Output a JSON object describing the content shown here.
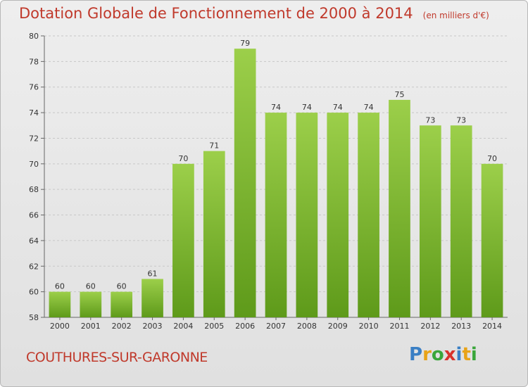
{
  "header": {
    "title": "Dotation Globale de Fonctionnement de 2000 à 2014",
    "unit": "(en milliers d'€)"
  },
  "footer": {
    "commune": "COUTHURES-SUR-GARONNE",
    "logo_letters": [
      "P",
      "r",
      "o",
      "x",
      "i",
      "t",
      "i"
    ],
    "logo_colors": [
      "#3a7fc4",
      "#e8a317",
      "#3aa63a",
      "#d8322b",
      "#3a7fc4",
      "#e8a317",
      "#3aa63a"
    ]
  },
  "colors": {
    "bar_top": "#9ccf4a",
    "bar_bottom": "#5e9a1a",
    "text": "#333333",
    "accent": "#c0392b"
  },
  "chart_data": {
    "type": "bar",
    "title": "Dotation Globale de Fonctionnement de 2000 à 2014",
    "subtitle": "(en milliers d'€)",
    "categories": [
      "2000",
      "2001",
      "2002",
      "2003",
      "2004",
      "2005",
      "2006",
      "2007",
      "2008",
      "2009",
      "2010",
      "2011",
      "2012",
      "2013",
      "2014"
    ],
    "values": [
      60,
      60,
      60,
      61,
      70,
      71,
      79,
      74,
      74,
      74,
      74,
      75,
      73,
      73,
      70
    ],
    "ylim": [
      58,
      80
    ],
    "yticks": [
      58,
      60,
      62,
      64,
      66,
      68,
      70,
      72,
      74,
      76,
      78,
      80
    ],
    "grid": true,
    "data_labels": true
  }
}
